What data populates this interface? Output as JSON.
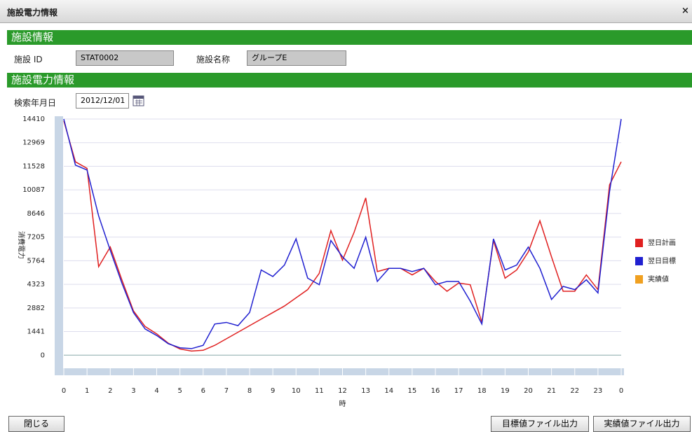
{
  "window": {
    "title": "施設電力情報",
    "close": "×"
  },
  "facility": {
    "heading": "施設情報",
    "id_label": "施設 ID",
    "id_value": "STAT0002",
    "name_label": "施設名称",
    "name_value": "グループE"
  },
  "power": {
    "heading": "施設電力情報",
    "date_label": "検索年月日",
    "date_value": "2012/12/01"
  },
  "buttons": {
    "close": "閉じる",
    "target_export": "目標値ファイル出力",
    "actual_export": "実績値ファイル出力"
  },
  "chart_data": {
    "type": "line",
    "y_label": "消費電力",
    "x_label": "時",
    "x": [
      0,
      0.5,
      1,
      1.5,
      2,
      2.5,
      3,
      3.5,
      4,
      4.5,
      5,
      5.5,
      6,
      6.5,
      7,
      7.5,
      8,
      8.5,
      9,
      9.5,
      10,
      10.5,
      11,
      11.5,
      12,
      12.5,
      13,
      13.5,
      14,
      14.5,
      15,
      15.5,
      16,
      16.5,
      17,
      17.5,
      18,
      18.5,
      19,
      19.5,
      20,
      20.5,
      21,
      21.5,
      22,
      22.5,
      23,
      23.5,
      24
    ],
    "xlim": [
      0,
      24
    ],
    "xticks": [
      0,
      1,
      2,
      3,
      4,
      5,
      6,
      7,
      8,
      9,
      10,
      11,
      12,
      13,
      14,
      15,
      16,
      17,
      18,
      19,
      20,
      21,
      22,
      23,
      {
        "value": 24,
        "label": "0"
      }
    ],
    "ylim": [
      -800,
      14410
    ],
    "yticks": [
      0,
      1441,
      2882,
      4323,
      5764,
      7205,
      8646,
      10087,
      11528,
      12969,
      14410
    ],
    "grid": true,
    "legend": "right",
    "series": [
      {
        "name": "翌日計画",
        "color": "#e02020",
        "values": [
          14300,
          11800,
          11400,
          5400,
          6600,
          4600,
          2700,
          1750,
          1300,
          730,
          380,
          250,
          300,
          600,
          1000,
          1400,
          1800,
          2200,
          2600,
          3000,
          3500,
          4000,
          5000,
          7600,
          5800,
          7500,
          9600,
          5100,
          5300,
          5300,
          4900,
          5300,
          4500,
          3900,
          4400,
          4300,
          2000,
          7000,
          4700,
          5200,
          6300,
          8200,
          6000,
          3900,
          3900,
          4900,
          4000,
          10400,
          11800
        ]
      },
      {
        "name": "翌日目標",
        "color": "#2020d0",
        "values": [
          14410,
          11600,
          11300,
          8500,
          6400,
          4400,
          2600,
          1600,
          1200,
          700,
          450,
          400,
          600,
          1900,
          2000,
          1800,
          2600,
          5200,
          4800,
          5500,
          7100,
          4700,
          4300,
          7000,
          6000,
          5300,
          7200,
          4500,
          5300,
          5300,
          5100,
          5300,
          4300,
          4500,
          4500,
          3300,
          1900,
          7100,
          5200,
          5500,
          6600,
          5300,
          3400,
          4200,
          4000,
          4600,
          3800,
          10000,
          14410
        ]
      },
      {
        "name": "実績値",
        "color": "#f0a020",
        "values": [
          null,
          null,
          null,
          null,
          null,
          null,
          null,
          null,
          null,
          null,
          null,
          null,
          null,
          null,
          null,
          null,
          null,
          null,
          null,
          null,
          null,
          null,
          null,
          null,
          null,
          null,
          null,
          null,
          null,
          null,
          null,
          null,
          null,
          null,
          null,
          null,
          null,
          null,
          null,
          null,
          null,
          null,
          null,
          null,
          null,
          null,
          null,
          null,
          null
        ]
      }
    ]
  }
}
